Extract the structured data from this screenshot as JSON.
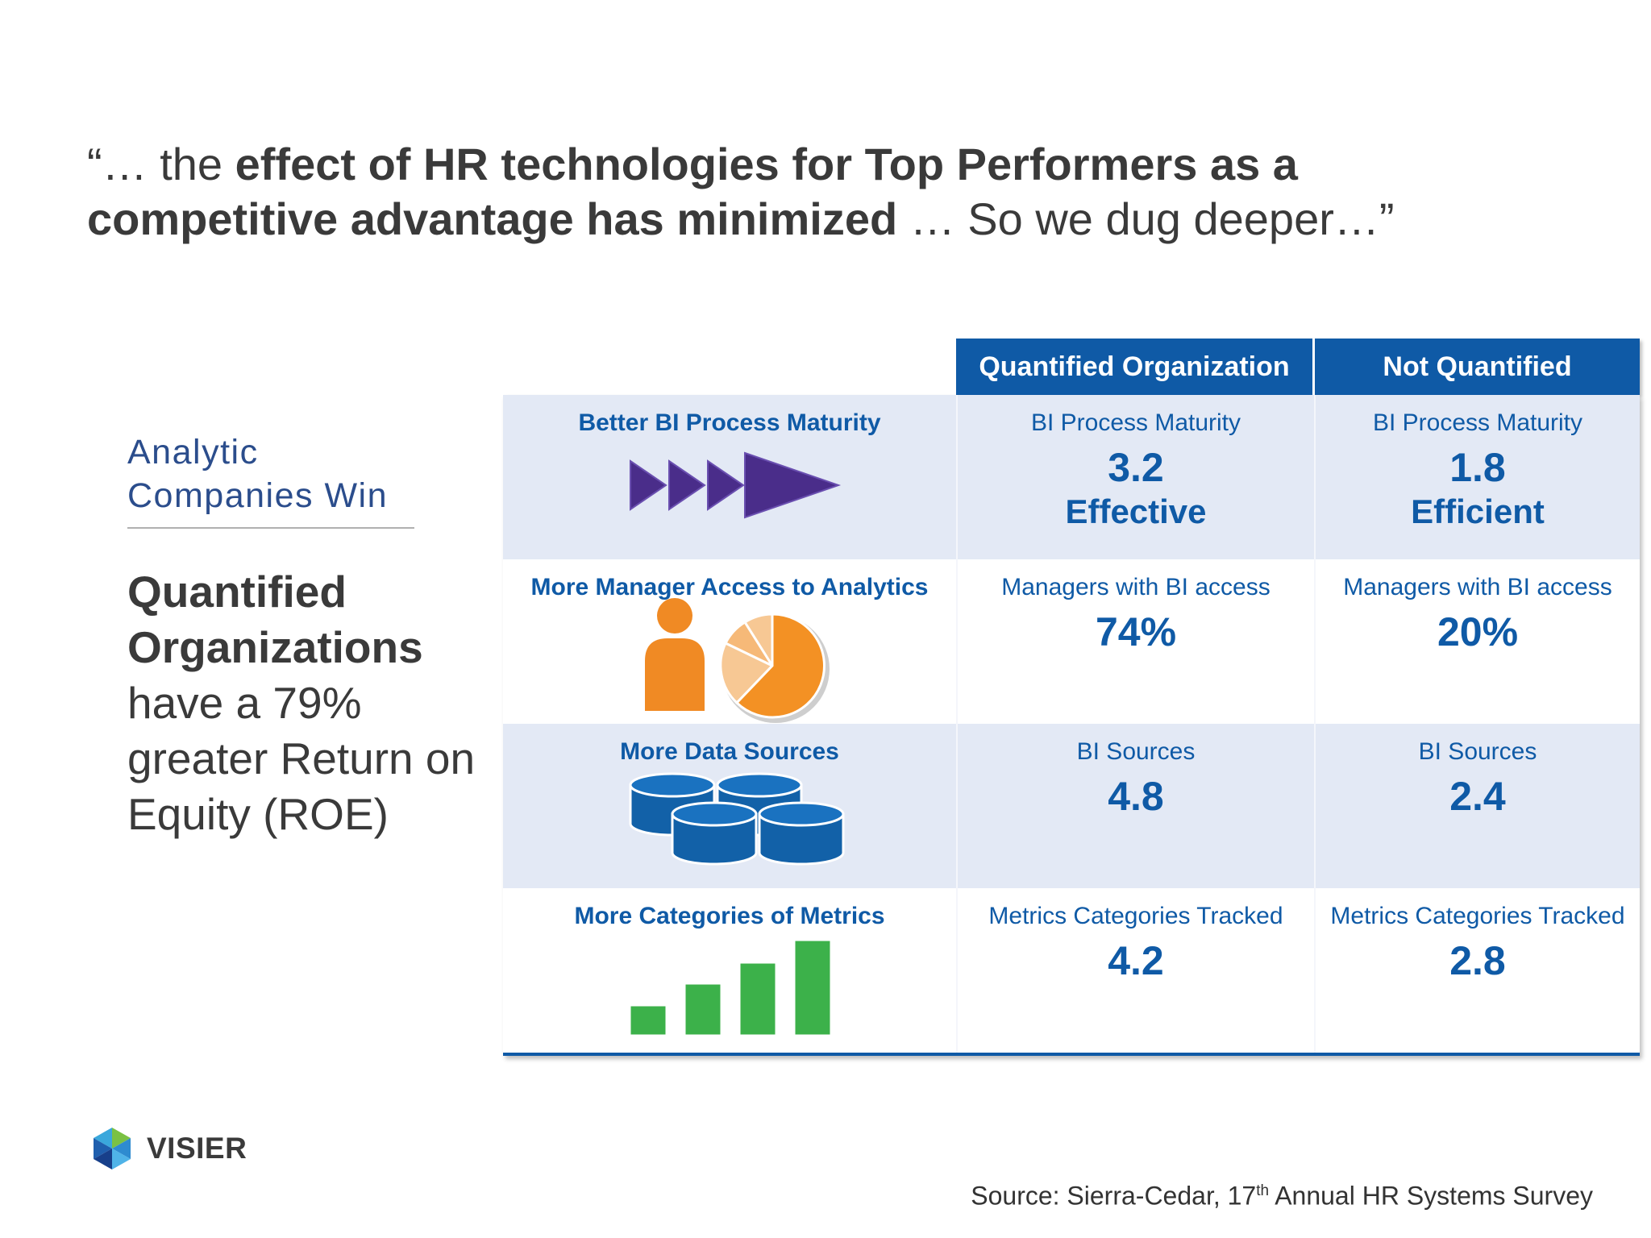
{
  "headline": {
    "open_quote": "“… the ",
    "bold_part": "effect of HR technologies for Top Performers as a competitive advantage has minimized",
    "tail": " … So we dug deeper…”"
  },
  "sidebar": {
    "title": "Analytic Companies Win",
    "bold_line": "Quantified Organizations",
    "body": "have a 79% greater Return on Equity (ROE)"
  },
  "table": {
    "headers": [
      "Quantified Organization",
      "Not Quantified"
    ],
    "rows": [
      {
        "label": "Better BI Process Maturity",
        "icon": "play-arrows-icon",
        "quantified": {
          "metric": "BI Process Maturity",
          "value": "3.2",
          "word": "Effective"
        },
        "not_quantified": {
          "metric": "BI Process Maturity",
          "value": "1.8",
          "word": "Efficient"
        }
      },
      {
        "label": "More Manager Access to Analytics",
        "icon": "person-pie-icon",
        "quantified": {
          "metric": "Managers with BI access",
          "value": "74%"
        },
        "not_quantified": {
          "metric": "Managers with BI access",
          "value": "20%"
        }
      },
      {
        "label": "More Data Sources",
        "icon": "database-stack-icon",
        "quantified": {
          "metric": "BI Sources",
          "value": "4.8"
        },
        "not_quantified": {
          "metric": "BI Sources",
          "value": "2.4"
        }
      },
      {
        "label": "More Categories of Metrics",
        "icon": "bar-growth-icon",
        "quantified": {
          "metric": "Metrics Categories Tracked",
          "value": "4.2"
        },
        "not_quantified": {
          "metric": "Metrics Categories Tracked",
          "value": "2.8"
        }
      }
    ]
  },
  "logo": {
    "text": "VISIER"
  },
  "source": {
    "prefix": "Source: Sierra-Cedar, 17",
    "sup": "th",
    "suffix": " Annual HR Systems Survey"
  },
  "colors": {
    "accent": "#0f5aa6",
    "row_shade": "#e3e9f5",
    "arrow": "#4a2d8a",
    "orange": "#f39124",
    "green": "#3cb14a"
  }
}
